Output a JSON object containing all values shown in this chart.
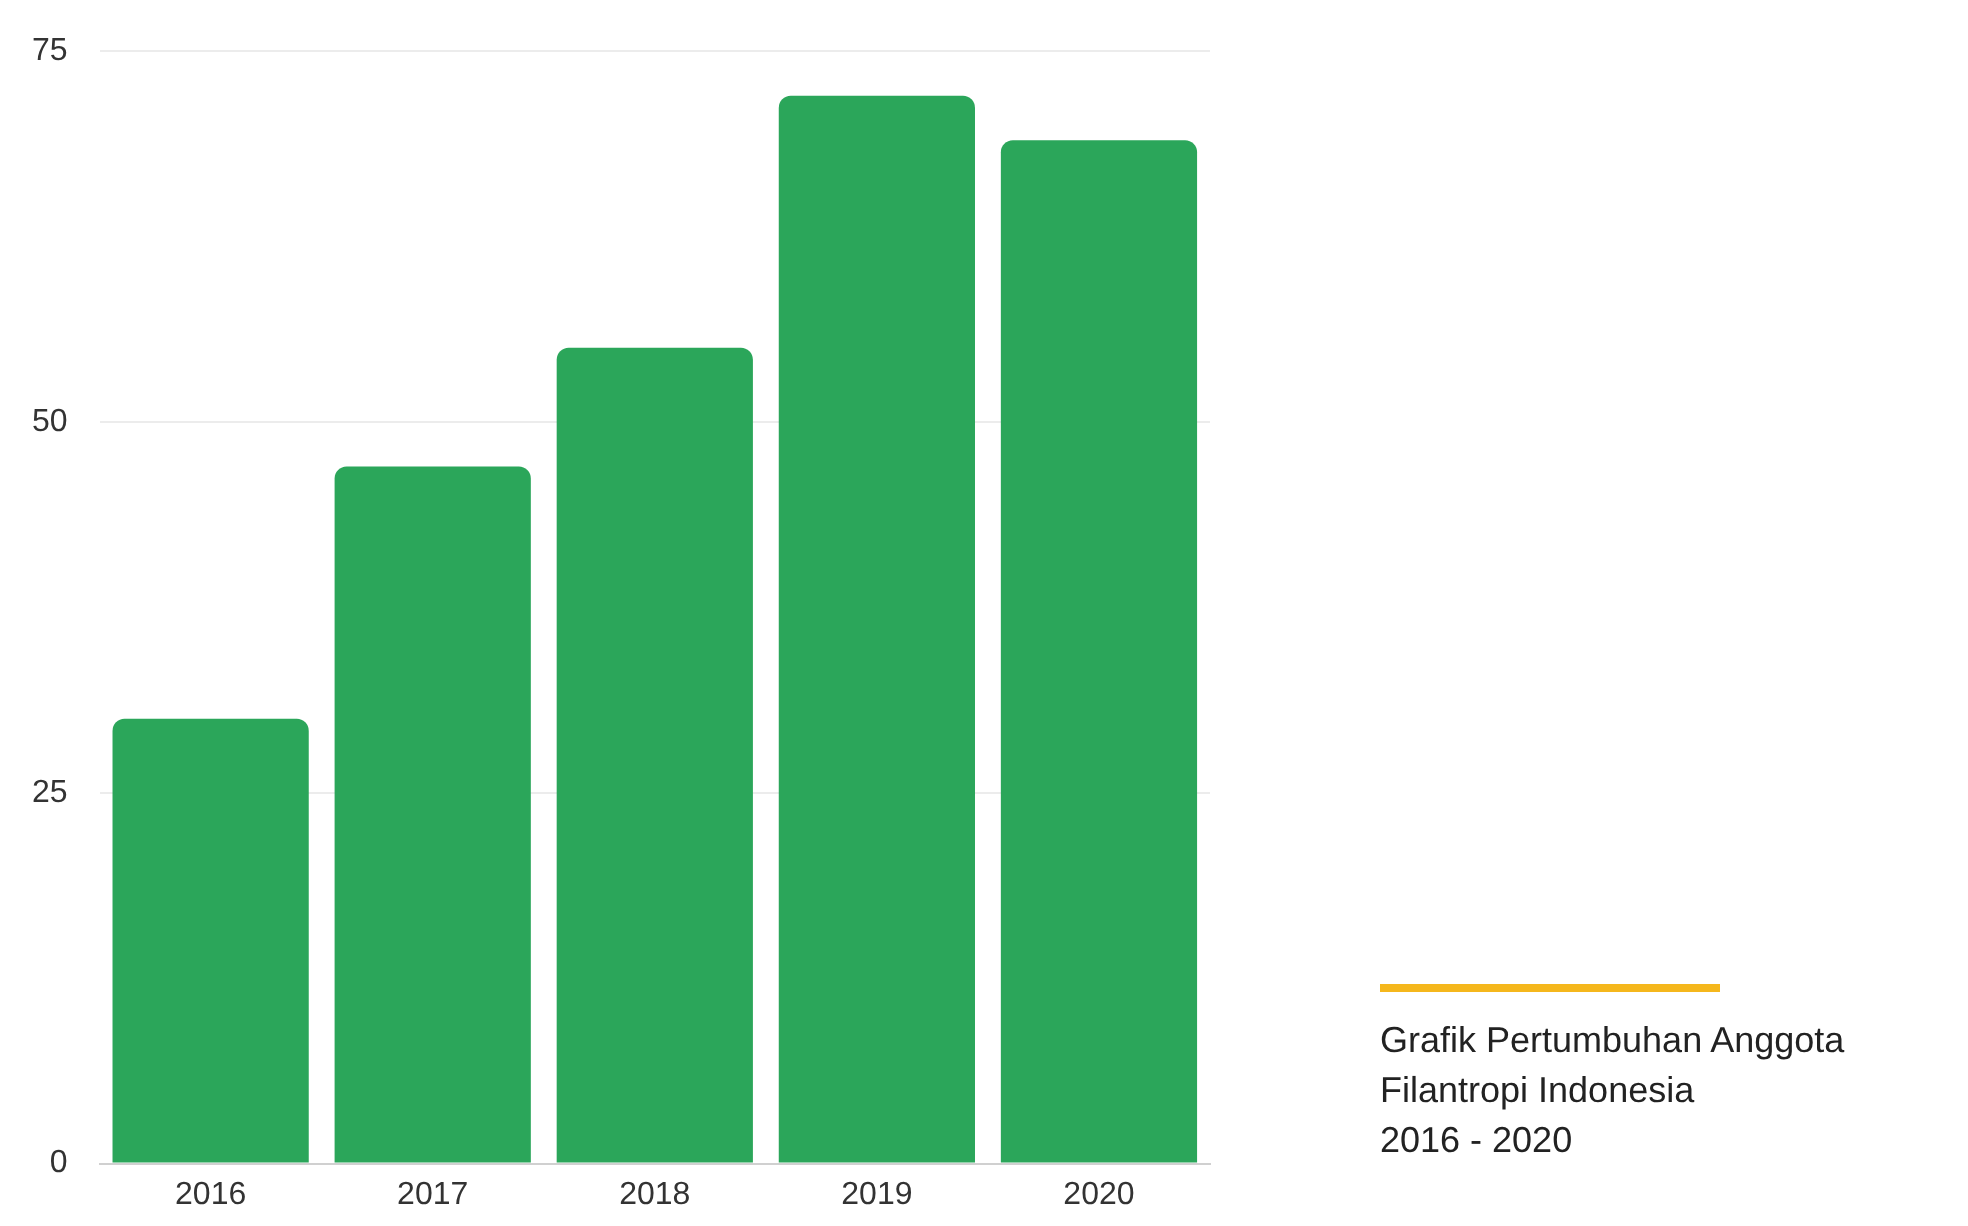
{
  "chart_data": {
    "type": "bar",
    "title": "Grafik Pertumbuhan Anggota\nFilantropi Indonesia",
    "subtitle": "2016 - 2020",
    "categories": [
      "2016",
      "2017",
      "2018",
      "2019",
      "2020"
    ],
    "values": [
      30,
      47,
      55,
      72,
      69
    ],
    "color": "#2ba65a",
    "ylim": [
      0,
      75
    ],
    "yticks": [
      0,
      25,
      50,
      75
    ],
    "grid": "y",
    "legend": false
  }
}
